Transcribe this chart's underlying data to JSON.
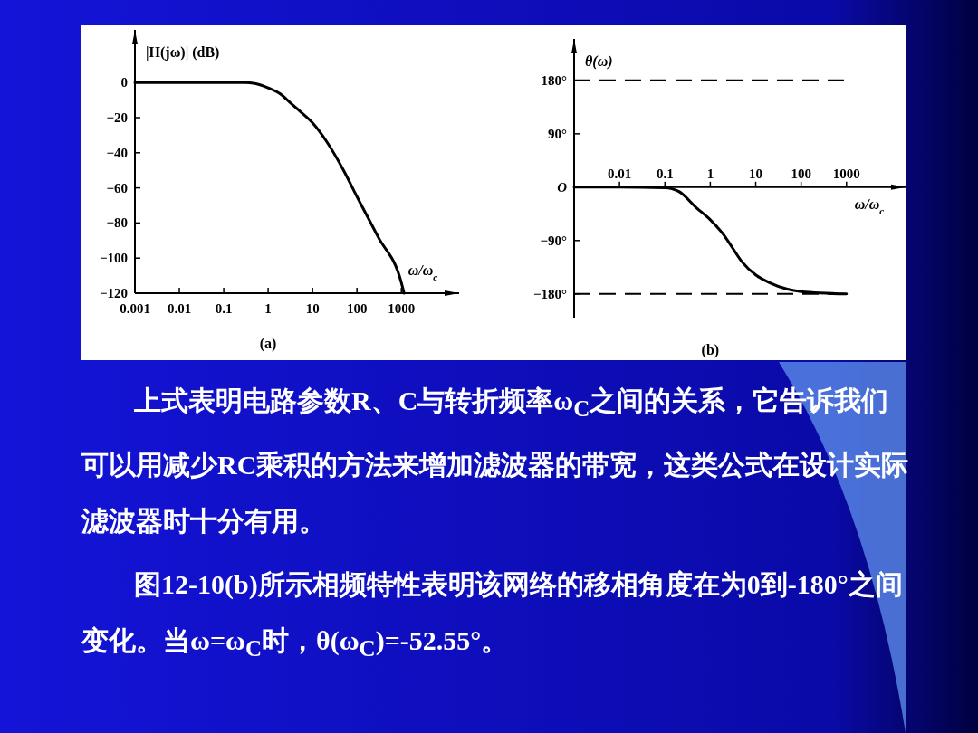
{
  "chart_data": [
    {
      "type": "line",
      "title": "(a)",
      "xlabel": "ω/ω$_{c}$",
      "ylabel": "|H(jω)| (dB)",
      "log": "x",
      "xlim": [
        0.001,
        20000
      ],
      "xticks": [
        0.001,
        0.01,
        0.1,
        1,
        10,
        100,
        1000
      ],
      "ylim": [
        -120,
        30
      ],
      "yticks": [
        0,
        {
          "value": -20,
          "label": "−20"
        },
        {
          "value": -40,
          "label": "−40"
        },
        {
          "value": -60,
          "label": "−60"
        },
        {
          "value": -80,
          "label": "−80"
        },
        {
          "value": -100,
          "label": "−100"
        },
        {
          "value": -120,
          "label": "−120"
        }
      ],
      "color": "#000000",
      "x": [
        0.001,
        0.01,
        0.1,
        0.3,
        0.5,
        1,
        2,
        3,
        5,
        10,
        20,
        50,
        100,
        300,
        1000,
        1150
      ],
      "values": [
        0,
        0,
        0,
        0,
        -0.5,
        -3,
        -7,
        -11,
        -16,
        -23,
        -33,
        -50,
        -65,
        -88,
        -114,
        -120
      ]
    },
    {
      "type": "line",
      "title": "(b)",
      "xlabel": "ω/ω$_{c}$",
      "ylabel": "θ(ω)",
      "log": "x",
      "xlim": [
        0.001,
        20000
      ],
      "xticks": [
        0.01,
        0.1,
        1,
        10,
        100,
        1000
      ],
      "ylim": [
        -220,
        250
      ],
      "yticks": [
        {
          "value": 180,
          "label": "180°"
        },
        {
          "value": 90,
          "label": "90°"
        },
        {
          "value": 0,
          "label": "O"
        },
        {
          "value": -90,
          "label": "−90°"
        },
        {
          "value": -180,
          "label": "−180°"
        }
      ],
      "color": "#000000",
      "ref_lines": [
        {
          "axis": "y",
          "value": 180,
          "line_style": "dashed"
        },
        {
          "axis": "y",
          "value": -180,
          "line_style": "dashed"
        }
      ],
      "x": [
        0.001,
        0.01,
        0.1,
        0.2,
        0.5,
        1,
        2,
        3,
        5,
        10,
        20,
        50,
        100,
        1000
      ],
      "values": [
        0,
        0,
        -1,
        -7,
        -35,
        -55,
        -81,
        -101,
        -126,
        -148,
        -161,
        -172,
        -176,
        -180
      ]
    },
    {
      "type": "other",
      "annotations": [
        "上式表明电路参数R、C与转折频率ω$_{C}$之间的关系，它告诉我们可以用减少RC乘积的方法来增加滤波器的带宽，这类公式在设计实际滤波器时十分有用。",
        "图12-10(b)所示相频特性表明该网络的移相角度在为0到-180°之间变化。当ω=ω$_{C}$时，θ(ω$_{C}$)=-52.55°。"
      ]
    }
  ]
}
